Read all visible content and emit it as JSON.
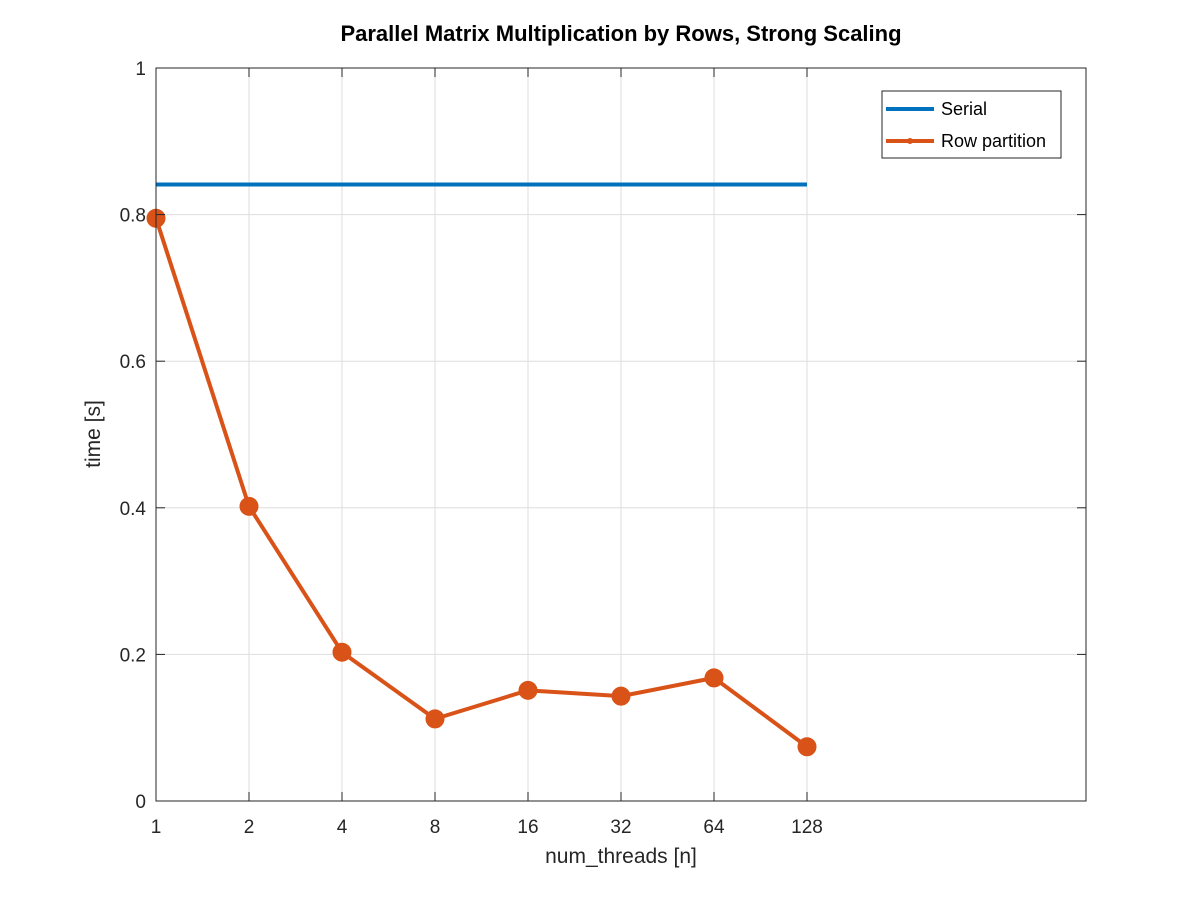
{
  "chart_data": {
    "type": "line",
    "title": "Parallel Matrix Multiplication by Rows, Strong Scaling",
    "xlabel": "num_threads [n]",
    "ylabel": "time [s]",
    "x_scale": "log2",
    "x_ticks": [
      "1",
      "2",
      "4",
      "8",
      "16",
      "32",
      "64",
      "128"
    ],
    "xlim": [
      1,
      1024
    ],
    "ylim": [
      0,
      1
    ],
    "y_ticks": [
      "0",
      "0.2",
      "0.4",
      "0.6",
      "0.8",
      "1"
    ],
    "grid": true,
    "legend_position": "top-right",
    "series": [
      {
        "name": "Serial",
        "color": "#0072bd",
        "marker": "none",
        "x": [
          1,
          2,
          4,
          8,
          16,
          32,
          64,
          128
        ],
        "y": [
          0.841,
          0.841,
          0.841,
          0.841,
          0.841,
          0.841,
          0.841,
          0.841
        ]
      },
      {
        "name": "Row partition",
        "color": "#d95319",
        "marker": "circle",
        "x": [
          1,
          2,
          4,
          8,
          16,
          32,
          64,
          128
        ],
        "y": [
          0.795,
          0.402,
          0.203,
          0.112,
          0.151,
          0.143,
          0.168,
          0.074
        ]
      }
    ]
  }
}
